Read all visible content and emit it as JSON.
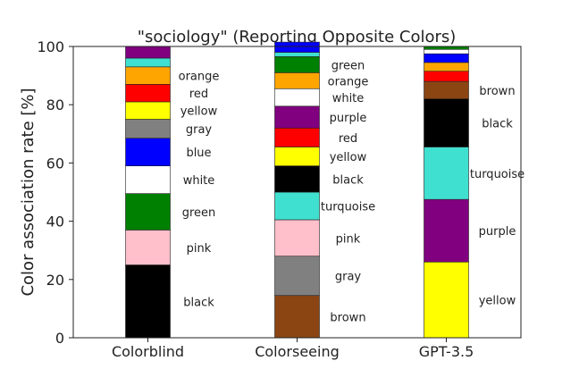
{
  "chart_data": {
    "type": "bar",
    "stacked": true,
    "title": "\"sociology\" (Reporting Opposite Colors)",
    "xlabel": "",
    "ylabel": "Color association rate [%]",
    "ylim": [
      0,
      100
    ],
    "yticks": [
      "0",
      "20",
      "40",
      "60",
      "80",
      "100"
    ],
    "grid": false,
    "categories": [
      "Colorblind",
      "Colorseeing",
      "GPT-3.5"
    ],
    "stacks": [
      {
        "category": "Colorblind",
        "segments": [
          {
            "label": "black",
            "value": 25.0,
            "color": "#000000",
            "show_label": true
          },
          {
            "label": "pink",
            "value": 12.0,
            "color": "#FFC0CB",
            "show_label": true
          },
          {
            "label": "green",
            "value": 12.5,
            "color": "#008000",
            "show_label": true
          },
          {
            "label": "white",
            "value": 9.5,
            "color": "#FFFFFF",
            "show_label": true
          },
          {
            "label": "blue",
            "value": 9.5,
            "color": "#0000FF",
            "show_label": true
          },
          {
            "label": "gray",
            "value": 6.5,
            "color": "#808080",
            "show_label": true
          },
          {
            "label": "yellow",
            "value": 6.0,
            "color": "#FFFF00",
            "show_label": true
          },
          {
            "label": "red",
            "value": 6.0,
            "color": "#FF0000",
            "show_label": true
          },
          {
            "label": "orange",
            "value": 6.0,
            "color": "#FFA500",
            "show_label": true
          },
          {
            "label": "turquoise",
            "value": 3.0,
            "color": "#40E0D0",
            "show_label": false
          },
          {
            "label": "purple",
            "value": 4.0,
            "color": "#800080",
            "show_label": false
          }
        ]
      },
      {
        "category": "Colorseeing",
        "segments": [
          {
            "label": "brown",
            "value": 14.5,
            "color": "#8B4513",
            "show_label": true
          },
          {
            "label": "gray",
            "value": 13.5,
            "color": "#808080",
            "show_label": true
          },
          {
            "label": "pink",
            "value": 12.5,
            "color": "#FFC0CB",
            "show_label": true
          },
          {
            "label": "turquoise",
            "value": 9.5,
            "color": "#40E0D0",
            "show_label": true
          },
          {
            "label": "black",
            "value": 9.0,
            "color": "#000000",
            "show_label": true
          },
          {
            "label": "yellow",
            "value": 6.5,
            "color": "#FFFF00",
            "show_label": true
          },
          {
            "label": "red",
            "value": 6.5,
            "color": "#FF0000",
            "show_label": true
          },
          {
            "label": "purple",
            "value": 7.5,
            "color": "#800080",
            "show_label": true
          },
          {
            "label": "white",
            "value": 6.0,
            "color": "#FFFFFF",
            "show_label": true
          },
          {
            "label": "orange",
            "value": 5.5,
            "color": "#FFA500",
            "show_label": true
          },
          {
            "label": "green",
            "value": 5.5,
            "color": "#008000",
            "show_label": true
          },
          {
            "label": "turquoise",
            "value": 1.5,
            "color": "#40E0D0",
            "show_label": false
          },
          {
            "label": "blue",
            "value": 3.5,
            "color": "#0000FF",
            "show_label": false
          }
        ]
      },
      {
        "category": "GPT-3.5",
        "segments": [
          {
            "label": "yellow",
            "value": 26.0,
            "color": "#FFFF00",
            "show_label": true
          },
          {
            "label": "purple",
            "value": 21.5,
            "color": "#800080",
            "show_label": true
          },
          {
            "label": "turquoise",
            "value": 18.0,
            "color": "#40E0D0",
            "show_label": true
          },
          {
            "label": "black",
            "value": 16.5,
            "color": "#000000",
            "show_label": true
          },
          {
            "label": "brown",
            "value": 6.0,
            "color": "#8B4513",
            "show_label": true
          },
          {
            "label": "red",
            "value": 3.5,
            "color": "#FF0000",
            "show_label": false
          },
          {
            "label": "orange",
            "value": 3.0,
            "color": "#FFA500",
            "show_label": false
          },
          {
            "label": "blue",
            "value": 3.0,
            "color": "#0000FF",
            "show_label": false
          },
          {
            "label": "white",
            "value": 1.5,
            "color": "#FFFFFF",
            "show_label": false
          },
          {
            "label": "green",
            "value": 1.0,
            "color": "#008000",
            "show_label": false
          }
        ]
      }
    ]
  }
}
